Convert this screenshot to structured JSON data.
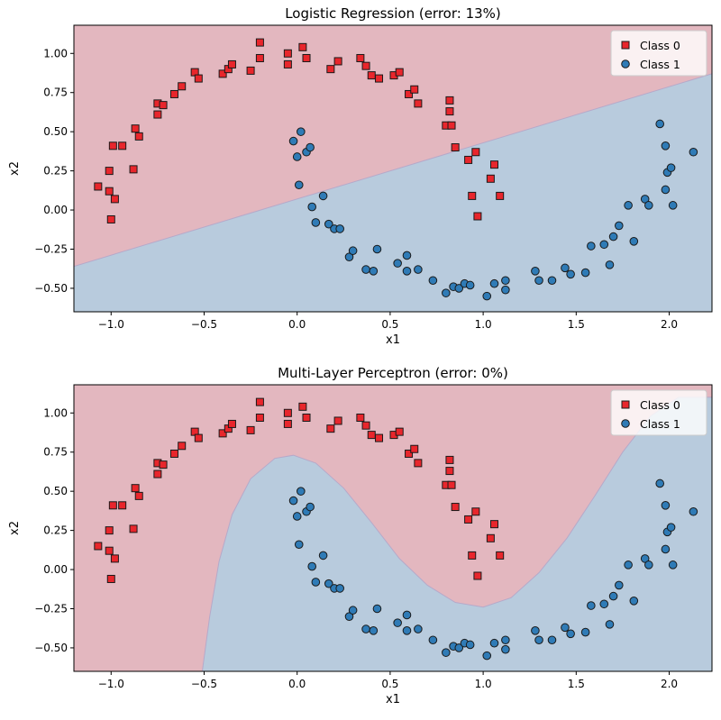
{
  "colors": {
    "class0_region": "#e3b7bf",
    "class1_region": "#b8cbdd",
    "class0_marker": "#e8262c",
    "class1_marker": "#2f7bb6",
    "marker_edge": "#1a1a1a"
  },
  "chart_data": [
    {
      "type": "scatter",
      "title": "Logistic Regression (error: 13%)",
      "xlabel": "x1",
      "ylabel": "x2",
      "xlim": [
        -1.2,
        2.23
      ],
      "ylim": [
        -0.65,
        1.18
      ],
      "xticks": [
        -1.0,
        -0.5,
        0.0,
        0.5,
        1.0,
        1.5,
        2.0
      ],
      "xtick_labels": [
        "−1.0",
        "−0.5",
        "0.0",
        "0.5",
        "1.0",
        "1.5",
        "2.0"
      ],
      "yticks": [
        -0.5,
        -0.25,
        0.0,
        0.25,
        0.5,
        0.75,
        1.0
      ],
      "ytick_labels": [
        "−0.50",
        "−0.25",
        "0.00",
        "0.25",
        "0.50",
        "0.75",
        "1.00"
      ],
      "legend": {
        "position": "top-right",
        "entries": [
          "Class 0",
          "Class 1"
        ]
      },
      "decision_boundary": {
        "kind": "linear",
        "points": [
          [
            -1.2,
            -0.36
          ],
          [
            2.23,
            0.87
          ]
        ]
      },
      "series": [
        {
          "name": "Class 0",
          "marker": "square",
          "points": [
            [
              -1.07,
              0.15
            ],
            [
              -1.01,
              0.12
            ],
            [
              -1.01,
              0.25
            ],
            [
              -1.0,
              -0.06
            ],
            [
              -0.99,
              0.41
            ],
            [
              -0.98,
              0.07
            ],
            [
              -0.94,
              0.41
            ],
            [
              -0.88,
              0.26
            ],
            [
              -0.87,
              0.52
            ],
            [
              -0.85,
              0.47
            ],
            [
              -0.75,
              0.61
            ],
            [
              -0.75,
              0.68
            ],
            [
              -0.72,
              0.67
            ],
            [
              -0.66,
              0.74
            ],
            [
              -0.62,
              0.79
            ],
            [
              -0.55,
              0.88
            ],
            [
              -0.53,
              0.84
            ],
            [
              -0.4,
              0.87
            ],
            [
              -0.37,
              0.9
            ],
            [
              -0.35,
              0.93
            ],
            [
              -0.25,
              0.89
            ],
            [
              -0.2,
              1.07
            ],
            [
              -0.2,
              0.97
            ],
            [
              -0.05,
              1.0
            ],
            [
              -0.05,
              0.93
            ],
            [
              0.03,
              1.04
            ],
            [
              0.05,
              0.97
            ],
            [
              0.18,
              0.9
            ],
            [
              0.22,
              0.95
            ],
            [
              0.34,
              0.97
            ],
            [
              0.37,
              0.92
            ],
            [
              0.4,
              0.86
            ],
            [
              0.44,
              0.84
            ],
            [
              0.52,
              0.86
            ],
            [
              0.55,
              0.88
            ],
            [
              0.6,
              0.74
            ],
            [
              0.63,
              0.77
            ],
            [
              0.65,
              0.68
            ],
            [
              0.8,
              0.54
            ],
            [
              0.82,
              0.7
            ],
            [
              0.82,
              0.63
            ],
            [
              0.83,
              0.54
            ],
            [
              0.85,
              0.4
            ],
            [
              0.92,
              0.32
            ],
            [
              0.94,
              0.09
            ],
            [
              0.96,
              0.37
            ],
            [
              0.97,
              -0.04
            ],
            [
              1.04,
              0.2
            ],
            [
              1.06,
              0.29
            ],
            [
              1.09,
              0.09
            ]
          ]
        },
        {
          "name": "Class 1",
          "marker": "circle",
          "points": [
            [
              -0.02,
              0.44
            ],
            [
              0.0,
              0.34
            ],
            [
              0.01,
              0.16
            ],
            [
              0.02,
              0.5
            ],
            [
              0.05,
              0.37
            ],
            [
              0.07,
              0.4
            ],
            [
              0.08,
              0.02
            ],
            [
              0.1,
              -0.08
            ],
            [
              0.14,
              0.09
            ],
            [
              0.17,
              -0.09
            ],
            [
              0.2,
              -0.12
            ],
            [
              0.23,
              -0.12
            ],
            [
              0.28,
              -0.3
            ],
            [
              0.3,
              -0.26
            ],
            [
              0.37,
              -0.38
            ],
            [
              0.41,
              -0.39
            ],
            [
              0.43,
              -0.25
            ],
            [
              0.54,
              -0.34
            ],
            [
              0.59,
              -0.29
            ],
            [
              0.59,
              -0.39
            ],
            [
              0.65,
              -0.38
            ],
            [
              0.73,
              -0.45
            ],
            [
              0.8,
              -0.53
            ],
            [
              0.84,
              -0.49
            ],
            [
              0.87,
              -0.5
            ],
            [
              0.9,
              -0.47
            ],
            [
              0.93,
              -0.48
            ],
            [
              1.02,
              -0.55
            ],
            [
              1.06,
              -0.47
            ],
            [
              1.12,
              -0.45
            ],
            [
              1.12,
              -0.51
            ],
            [
              1.28,
              -0.39
            ],
            [
              1.3,
              -0.45
            ],
            [
              1.37,
              -0.45
            ],
            [
              1.44,
              -0.37
            ],
            [
              1.47,
              -0.41
            ],
            [
              1.55,
              -0.4
            ],
            [
              1.58,
              -0.23
            ],
            [
              1.65,
              -0.22
            ],
            [
              1.68,
              -0.35
            ],
            [
              1.7,
              -0.17
            ],
            [
              1.73,
              -0.1
            ],
            [
              1.78,
              0.03
            ],
            [
              1.81,
              -0.2
            ],
            [
              1.87,
              0.07
            ],
            [
              1.89,
              0.03
            ],
            [
              1.95,
              0.55
            ],
            [
              1.98,
              0.13
            ],
            [
              1.98,
              0.41
            ],
            [
              1.99,
              0.24
            ],
            [
              2.01,
              0.27
            ],
            [
              2.02,
              0.03
            ],
            [
              2.13,
              0.37
            ]
          ]
        }
      ]
    },
    {
      "type": "scatter",
      "title": "Multi-Layer Perceptron (error: 0%)",
      "xlabel": "x1",
      "ylabel": "x2",
      "xlim": [
        -1.2,
        2.23
      ],
      "ylim": [
        -0.65,
        1.18
      ],
      "xticks": [
        -1.0,
        -0.5,
        0.0,
        0.5,
        1.0,
        1.5,
        2.0
      ],
      "xtick_labels": [
        "−1.0",
        "−0.5",
        "0.0",
        "0.5",
        "1.0",
        "1.5",
        "2.0"
      ],
      "yticks": [
        -0.5,
        -0.25,
        0.0,
        0.25,
        0.5,
        0.75,
        1.0
      ],
      "ytick_labels": [
        "−0.50",
        "−0.25",
        "0.00",
        "0.25",
        "0.50",
        "0.75",
        "1.00"
      ],
      "legend": {
        "position": "top-right",
        "entries": [
          "Class 0",
          "Class 1"
        ]
      },
      "decision_boundary": {
        "kind": "curve",
        "points": [
          [
            -0.51,
            -0.65
          ],
          [
            -0.47,
            -0.3
          ],
          [
            -0.42,
            0.05
          ],
          [
            -0.35,
            0.35
          ],
          [
            -0.25,
            0.58
          ],
          [
            -0.12,
            0.71
          ],
          [
            -0.02,
            0.73
          ],
          [
            0.1,
            0.68
          ],
          [
            0.25,
            0.52
          ],
          [
            0.4,
            0.3
          ],
          [
            0.55,
            0.07
          ],
          [
            0.7,
            -0.1
          ],
          [
            0.85,
            -0.21
          ],
          [
            1.0,
            -0.24
          ],
          [
            1.15,
            -0.18
          ],
          [
            1.3,
            -0.02
          ],
          [
            1.45,
            0.2
          ],
          [
            1.6,
            0.47
          ],
          [
            1.75,
            0.75
          ],
          [
            1.9,
            0.98
          ],
          [
            2.05,
            1.1
          ],
          [
            2.23,
            1.1
          ]
        ]
      },
      "series": [
        {
          "name": "Class 0",
          "marker": "square",
          "points": [
            [
              -1.07,
              0.15
            ],
            [
              -1.01,
              0.12
            ],
            [
              -1.01,
              0.25
            ],
            [
              -1.0,
              -0.06
            ],
            [
              -0.99,
              0.41
            ],
            [
              -0.98,
              0.07
            ],
            [
              -0.94,
              0.41
            ],
            [
              -0.88,
              0.26
            ],
            [
              -0.87,
              0.52
            ],
            [
              -0.85,
              0.47
            ],
            [
              -0.75,
              0.61
            ],
            [
              -0.75,
              0.68
            ],
            [
              -0.72,
              0.67
            ],
            [
              -0.66,
              0.74
            ],
            [
              -0.62,
              0.79
            ],
            [
              -0.55,
              0.88
            ],
            [
              -0.53,
              0.84
            ],
            [
              -0.4,
              0.87
            ],
            [
              -0.37,
              0.9
            ],
            [
              -0.35,
              0.93
            ],
            [
              -0.25,
              0.89
            ],
            [
              -0.2,
              1.07
            ],
            [
              -0.2,
              0.97
            ],
            [
              -0.05,
              1.0
            ],
            [
              -0.05,
              0.93
            ],
            [
              0.03,
              1.04
            ],
            [
              0.05,
              0.97
            ],
            [
              0.18,
              0.9
            ],
            [
              0.22,
              0.95
            ],
            [
              0.34,
              0.97
            ],
            [
              0.37,
              0.92
            ],
            [
              0.4,
              0.86
            ],
            [
              0.44,
              0.84
            ],
            [
              0.52,
              0.86
            ],
            [
              0.55,
              0.88
            ],
            [
              0.6,
              0.74
            ],
            [
              0.63,
              0.77
            ],
            [
              0.65,
              0.68
            ],
            [
              0.8,
              0.54
            ],
            [
              0.82,
              0.7
            ],
            [
              0.82,
              0.63
            ],
            [
              0.83,
              0.54
            ],
            [
              0.85,
              0.4
            ],
            [
              0.92,
              0.32
            ],
            [
              0.94,
              0.09
            ],
            [
              0.96,
              0.37
            ],
            [
              0.97,
              -0.04
            ],
            [
              1.04,
              0.2
            ],
            [
              1.06,
              0.29
            ],
            [
              1.09,
              0.09
            ]
          ]
        },
        {
          "name": "Class 1",
          "marker": "circle",
          "points": [
            [
              -0.02,
              0.44
            ],
            [
              0.0,
              0.34
            ],
            [
              0.01,
              0.16
            ],
            [
              0.02,
              0.5
            ],
            [
              0.05,
              0.37
            ],
            [
              0.07,
              0.4
            ],
            [
              0.08,
              0.02
            ],
            [
              0.1,
              -0.08
            ],
            [
              0.14,
              0.09
            ],
            [
              0.17,
              -0.09
            ],
            [
              0.2,
              -0.12
            ],
            [
              0.23,
              -0.12
            ],
            [
              0.28,
              -0.3
            ],
            [
              0.3,
              -0.26
            ],
            [
              0.37,
              -0.38
            ],
            [
              0.41,
              -0.39
            ],
            [
              0.43,
              -0.25
            ],
            [
              0.54,
              -0.34
            ],
            [
              0.59,
              -0.29
            ],
            [
              0.59,
              -0.39
            ],
            [
              0.65,
              -0.38
            ],
            [
              0.73,
              -0.45
            ],
            [
              0.8,
              -0.53
            ],
            [
              0.84,
              -0.49
            ],
            [
              0.87,
              -0.5
            ],
            [
              0.9,
              -0.47
            ],
            [
              0.93,
              -0.48
            ],
            [
              1.02,
              -0.55
            ],
            [
              1.06,
              -0.47
            ],
            [
              1.12,
              -0.45
            ],
            [
              1.12,
              -0.51
            ],
            [
              1.28,
              -0.39
            ],
            [
              1.3,
              -0.45
            ],
            [
              1.37,
              -0.45
            ],
            [
              1.44,
              -0.37
            ],
            [
              1.47,
              -0.41
            ],
            [
              1.55,
              -0.4
            ],
            [
              1.58,
              -0.23
            ],
            [
              1.65,
              -0.22
            ],
            [
              1.68,
              -0.35
            ],
            [
              1.7,
              -0.17
            ],
            [
              1.73,
              -0.1
            ],
            [
              1.78,
              0.03
            ],
            [
              1.81,
              -0.2
            ],
            [
              1.87,
              0.07
            ],
            [
              1.89,
              0.03
            ],
            [
              1.95,
              0.55
            ],
            [
              1.98,
              0.13
            ],
            [
              1.98,
              0.41
            ],
            [
              1.99,
              0.24
            ],
            [
              2.01,
              0.27
            ],
            [
              2.02,
              0.03
            ],
            [
              2.13,
              0.37
            ]
          ]
        }
      ]
    }
  ]
}
